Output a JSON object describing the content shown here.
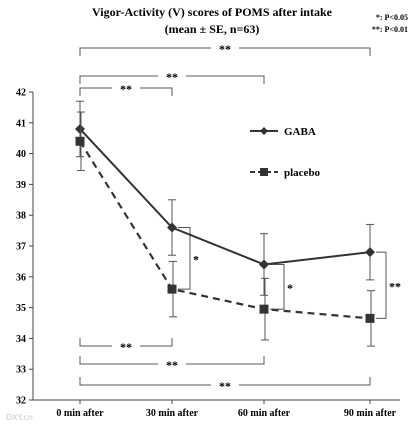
{
  "chart_data": {
    "type": "line",
    "title": "Vigor-Activity  (V) scores of POMS after intake",
    "subtitle": "(mean ± SE,  n=63)",
    "significance_legend": [
      "*: P<0.05",
      "**: P<0.01"
    ],
    "categories": [
      "0 min after",
      "30 min after",
      "60 min after",
      "90 min after"
    ],
    "ylim": [
      32,
      42
    ],
    "yticks": [
      32,
      33,
      34,
      35,
      36,
      37,
      38,
      39,
      40,
      41,
      42
    ],
    "grid": false,
    "legend_position": "right",
    "series": [
      {
        "name": "GABA",
        "values": [
          40.8,
          37.6,
          36.4,
          36.8
        ],
        "se": [
          0.9,
          0.9,
          1.0,
          0.9
        ],
        "color": "#333333",
        "line_style": "solid",
        "marker": "diamond"
      },
      {
        "name": "placebo",
        "values": [
          40.4,
          35.6,
          34.95,
          34.65
        ],
        "se": [
          0.95,
          0.9,
          1.0,
          0.9
        ],
        "color": "#333333",
        "line_style": "dashed",
        "marker": "square"
      }
    ],
    "annotations": {
      "top_brackets": [
        {
          "from": 0,
          "to": 1,
          "label": "**"
        },
        {
          "from": 0,
          "to": 2,
          "label": "**"
        },
        {
          "from": 0,
          "to": 3,
          "label": "**"
        }
      ],
      "bottom_brackets": [
        {
          "from": 0,
          "to": 1,
          "label": "**"
        },
        {
          "from": 0,
          "to": 2,
          "label": "**"
        },
        {
          "from": 0,
          "to": 3,
          "label": "**"
        }
      ],
      "between_groups": [
        {
          "at": 1,
          "label": "*"
        },
        {
          "at": 2,
          "label": "*"
        },
        {
          "at": 3,
          "label": "**"
        }
      ]
    }
  },
  "watermark": "DXY.cn"
}
